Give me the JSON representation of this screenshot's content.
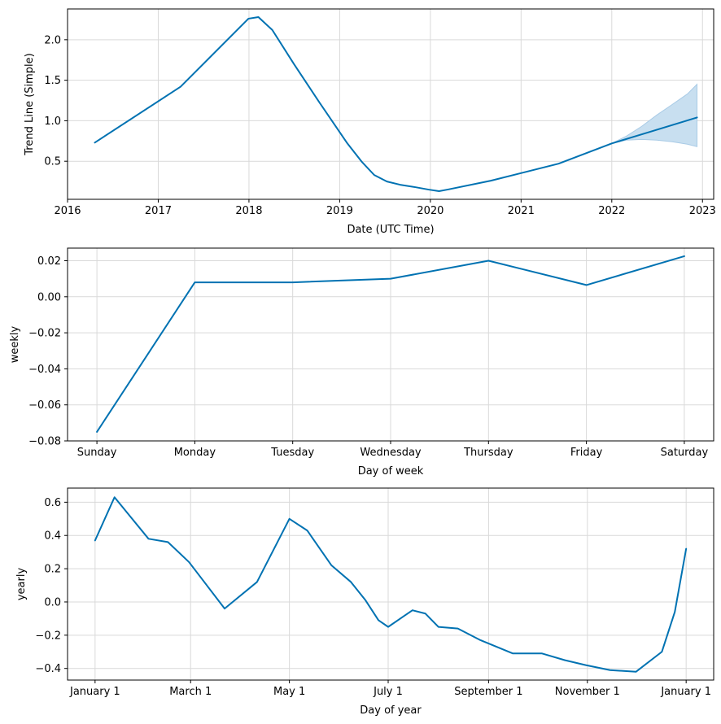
{
  "chart_data": [
    {
      "type": "line",
      "xlabel": "Date (UTC Time)",
      "ylabel": "Trend Line (Simple)",
      "x_ticks": [
        "2016",
        "2017",
        "2018",
        "2019",
        "2020",
        "2021",
        "2022",
        "2023"
      ],
      "y_ticks": [
        "0.5",
        "1.0",
        "1.5",
        "2.0"
      ],
      "xlim": [
        "2016-01-01",
        "2023-02-15"
      ],
      "ylim": [
        0.03,
        2.38
      ],
      "grid": true,
      "color": "#0072b2",
      "band_color": "#c8dff0",
      "series": [
        {
          "x": [
            "2016-04-20",
            "2017-04-01",
            "2017-12-30",
            "2018-02-08",
            "2018-04-05",
            "2018-07-01",
            "2018-10-15",
            "2019-02-01",
            "2019-04-01",
            "2019-05-20",
            "2019-07-10",
            "2019-09-01",
            "2019-11-01",
            "2019-12-25",
            "2020-02-05",
            "2020-03-10",
            "2020-09-01",
            "2021-06-01",
            "2022-01-01",
            "2022-06-01",
            "2022-12-10"
          ],
          "y": [
            0.73,
            1.42,
            2.26,
            2.28,
            2.12,
            1.7,
            1.21,
            0.72,
            0.49,
            0.33,
            0.25,
            0.21,
            0.18,
            0.15,
            0.13,
            0.15,
            0.26,
            0.47,
            0.72,
            0.86,
            1.04
          ]
        }
      ],
      "uncertainty": {
        "x": [
          "2022-01-01",
          "2022-03-01",
          "2022-05-01",
          "2022-07-01",
          "2022-09-01",
          "2022-11-01",
          "2022-12-10"
        ],
        "upper": [
          0.72,
          0.81,
          0.93,
          1.07,
          1.2,
          1.33,
          1.45
        ],
        "lower": [
          0.72,
          0.76,
          0.77,
          0.76,
          0.74,
          0.71,
          0.68
        ]
      }
    },
    {
      "type": "line",
      "xlabel": "Day of week",
      "ylabel": "weekly",
      "categories": [
        "Sunday",
        "Monday",
        "Tuesday",
        "Wednesday",
        "Thursday",
        "Friday",
        "Saturday"
      ],
      "y_ticks": [
        "0.02",
        "0.00",
        "−0.02",
        "−0.04",
        "−0.06",
        "−0.08"
      ],
      "ylim": [
        -0.08,
        0.027
      ],
      "grid": true,
      "color": "#0072b2",
      "series": [
        {
          "values": [
            -0.075,
            0.008,
            0.008,
            0.01,
            0.02,
            0.0065,
            0.0225
          ]
        }
      ]
    },
    {
      "type": "line",
      "xlabel": "Day of year",
      "ylabel": "yearly",
      "x_ticks": [
        "January 1",
        "March 1",
        "May 1",
        "July 1",
        "September 1",
        "November 1",
        "January 1"
      ],
      "x_tick_days": [
        0,
        59,
        120,
        181,
        243,
        304,
        365
      ],
      "y_ticks": [
        "0.6",
        "0.4",
        "0.2",
        "0.0",
        "−0.2",
        "−0.4"
      ],
      "xlim": [
        -17,
        382
      ],
      "ylim": [
        -0.47,
        0.685
      ],
      "grid": true,
      "color": "#0072b2",
      "series": [
        {
          "x": [
            0,
            12,
            33,
            45,
            58,
            80,
            100,
            120,
            131,
            146,
            158,
            167,
            175,
            181,
            190,
            196,
            204,
            212,
            224,
            238,
            258,
            276,
            290,
            303,
            318,
            334,
            350,
            358,
            365
          ],
          "y": [
            0.37,
            0.63,
            0.38,
            0.36,
            0.24,
            -0.04,
            0.12,
            0.5,
            0.43,
            0.22,
            0.12,
            0.01,
            -0.11,
            -0.15,
            -0.09,
            -0.05,
            -0.07,
            -0.15,
            -0.16,
            -0.23,
            -0.31,
            -0.31,
            -0.35,
            -0.38,
            -0.41,
            -0.42,
            -0.3,
            -0.06,
            0.32
          ]
        }
      ]
    }
  ]
}
